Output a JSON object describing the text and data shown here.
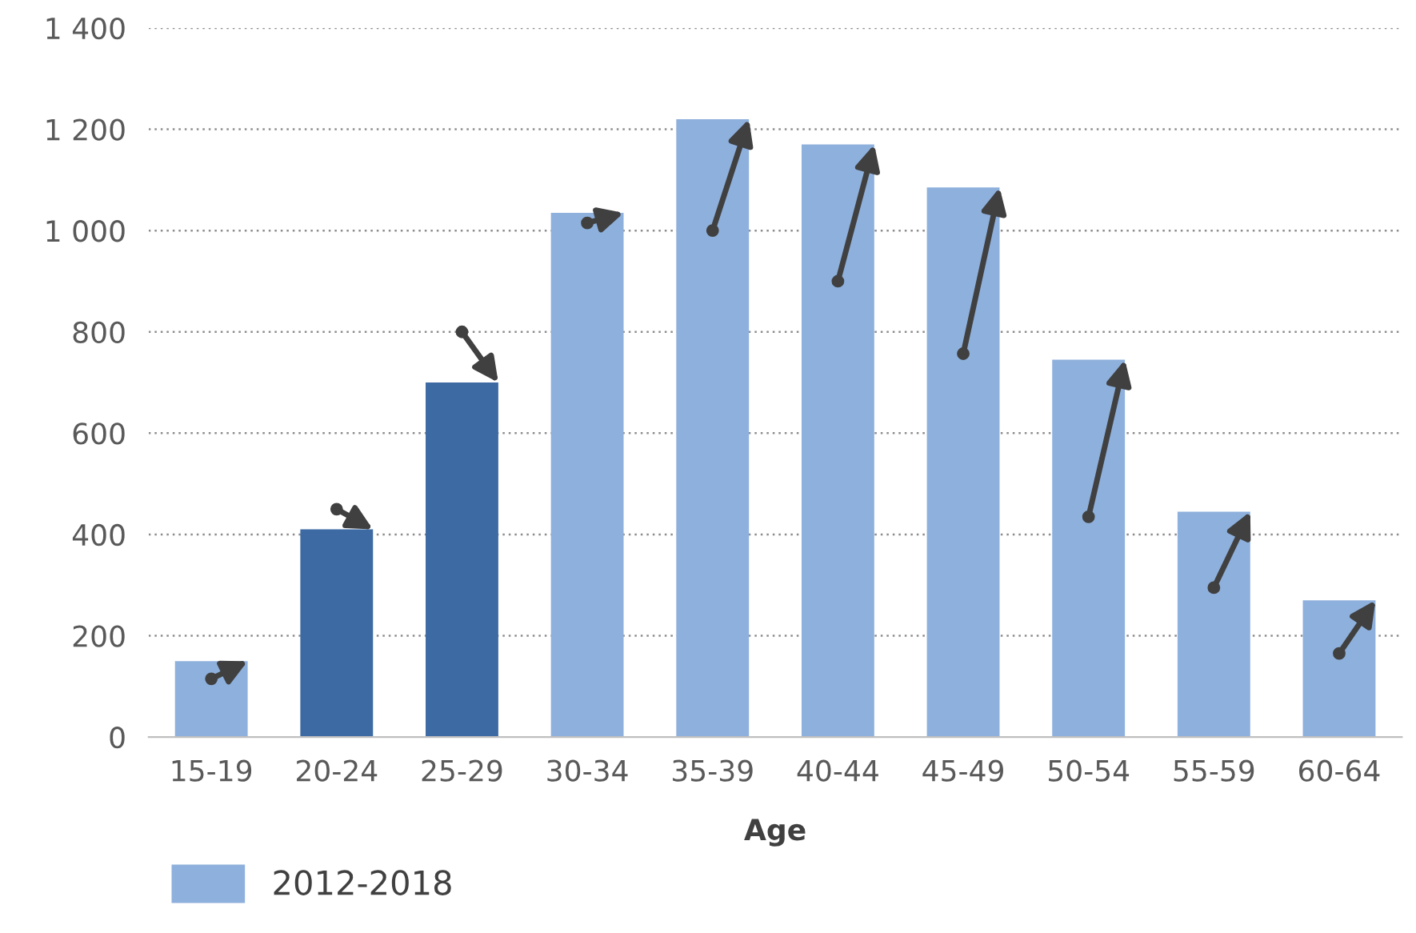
{
  "chart_data": {
    "type": "bar",
    "xlabel": "Age",
    "categories": [
      "15-19",
      "20-24",
      "25-29",
      "30-34",
      "35-39",
      "40-44",
      "45-49",
      "50-54",
      "55-59",
      "60-64"
    ],
    "series": [
      {
        "name": "2012-2018",
        "color": "#8eb0dc",
        "colors": [
          "#8eb0dc",
          "#3d6aa3",
          "#3d6aa3",
          "#8eb0dc",
          "#8eb0dc",
          "#8eb0dc",
          "#8eb0dc",
          "#8eb0dc",
          "#8eb0dc",
          "#8eb0dc"
        ],
        "values": [
          150,
          410,
          700,
          1035,
          1220,
          1170,
          1085,
          745,
          445,
          270
        ]
      },
      {
        "type": "scatter",
        "marker": "circle",
        "color": "#404040",
        "values": [
          115,
          450,
          800,
          1015,
          1000,
          900,
          757,
          435,
          295,
          165
        ]
      }
    ],
    "ylim": [
      0,
      1400
    ],
    "yticks": [
      0,
      200,
      400,
      600,
      800,
      {
        "value": 1000,
        "label": "1 000"
      },
      {
        "value": 1200,
        "label": "1 200"
      },
      {
        "value": 1400,
        "label": "1 400"
      }
    ],
    "grid": "y",
    "legend": "bottom left"
  }
}
